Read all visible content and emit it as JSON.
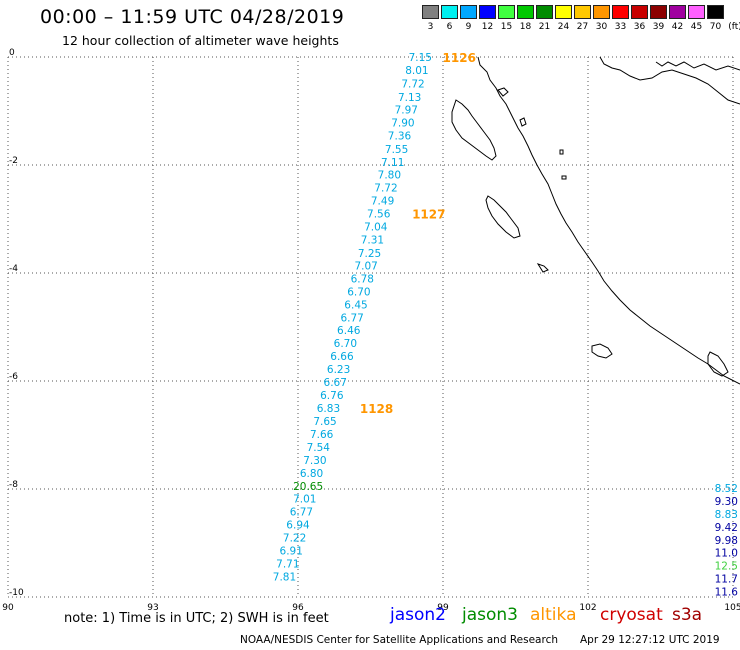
{
  "header": {
    "title": "00:00 – 11:59 UTC 04/28/2019",
    "subtitle": "12 hour collection of altimeter wave heights"
  },
  "legend": {
    "unit": "(ft)",
    "bins": [
      {
        "label": "3",
        "color": "#808080"
      },
      {
        "label": "6",
        "color": "#00f0f0"
      },
      {
        "label": "9",
        "color": "#00a8ff"
      },
      {
        "label": "12",
        "color": "#0000ff"
      },
      {
        "label": "15",
        "color": "#40ff40"
      },
      {
        "label": "18",
        "color": "#00c800"
      },
      {
        "label": "21",
        "color": "#008c00"
      },
      {
        "label": "24",
        "color": "#ffff00"
      },
      {
        "label": "27",
        "color": "#ffc800"
      },
      {
        "label": "30",
        "color": "#ff9600"
      },
      {
        "label": "33",
        "color": "#ff0000"
      },
      {
        "label": "36",
        "color": "#c80000"
      },
      {
        "label": "39",
        "color": "#8c0000"
      },
      {
        "label": "42",
        "color": "#a000a0"
      },
      {
        "label": "45",
        "color": "#ff60ff"
      },
      {
        "label": "70",
        "color": "#000000"
      }
    ]
  },
  "axes": {
    "lat_labels": [
      "0",
      "-2",
      "-4",
      "-6",
      "-8",
      "-10"
    ],
    "lon_labels": [
      "90",
      "93",
      "96",
      "99",
      "102",
      "105"
    ]
  },
  "colors": {
    "jason2": "#0000ff",
    "jason3": "#008c00",
    "altika": "#ff9600",
    "cryosat": "#d00000",
    "s3a": "#a00000",
    "wave_cyan": "#00a8e0",
    "coast": "#000000"
  },
  "track_main": [
    {
      "v": "7.15",
      "lon": 98.53,
      "lat": 0.0
    },
    {
      "v": "8.01",
      "lon": 98.46,
      "lat": -0.24
    },
    {
      "v": "7.72",
      "lon": 98.38,
      "lat": -0.49
    },
    {
      "v": "7.13",
      "lon": 98.31,
      "lat": -0.74
    },
    {
      "v": "7.97",
      "lon": 98.24,
      "lat": -0.97
    },
    {
      "v": "7.90",
      "lon": 98.17,
      "lat": -1.21
    },
    {
      "v": "7.36",
      "lon": 98.1,
      "lat": -1.45
    },
    {
      "v": "7.55",
      "lon": 98.04,
      "lat": -1.7
    },
    {
      "v": "7.11",
      "lon": 97.96,
      "lat": -1.94
    },
    {
      "v": "7.80",
      "lon": 97.89,
      "lat": -2.18
    },
    {
      "v": "7.72",
      "lon": 97.82,
      "lat": -2.42
    },
    {
      "v": "7.49",
      "lon": 97.75,
      "lat": -2.66
    },
    {
      "v": "7.56",
      "lon": 97.67,
      "lat": -2.9
    },
    {
      "v": "7.04",
      "lon": 97.61,
      "lat": -3.14
    },
    {
      "v": "7.31",
      "lon": 97.54,
      "lat": -3.38
    },
    {
      "v": "7.25",
      "lon": 97.48,
      "lat": -3.63
    },
    {
      "v": "7.07",
      "lon": 97.41,
      "lat": -3.86
    },
    {
      "v": "6.78",
      "lon": 97.33,
      "lat": -4.1
    },
    {
      "v": "6.70",
      "lon": 97.26,
      "lat": -4.34
    },
    {
      "v": "6.45",
      "lon": 97.2,
      "lat": -4.58
    },
    {
      "v": "6.77",
      "lon": 97.12,
      "lat": -4.82
    },
    {
      "v": "6.46",
      "lon": 97.05,
      "lat": -5.06
    },
    {
      "v": "6.70",
      "lon": 96.98,
      "lat": -5.3
    },
    {
      "v": "6.66",
      "lon": 96.91,
      "lat": -5.54
    },
    {
      "v": "6.23",
      "lon": 96.84,
      "lat": -5.78
    },
    {
      "v": "6.67",
      "lon": 96.77,
      "lat": -6.02
    },
    {
      "v": "6.76",
      "lon": 96.7,
      "lat": -6.26
    },
    {
      "v": "6.83",
      "lon": 96.63,
      "lat": -6.5
    },
    {
      "v": "7.65",
      "lon": 96.56,
      "lat": -6.74
    },
    {
      "v": "7.66",
      "lon": 96.49,
      "lat": -6.98
    },
    {
      "v": "7.54",
      "lon": 96.42,
      "lat": -7.22
    },
    {
      "v": "7.30",
      "lon": 96.35,
      "lat": -7.46
    },
    {
      "v": "6.80",
      "lon": 96.28,
      "lat": -7.7
    },
    {
      "v": "20.65",
      "lon": 96.21,
      "lat": -7.94,
      "c": "#008c00"
    },
    {
      "v": "7.01",
      "lon": 96.14,
      "lat": -8.18
    },
    {
      "v": "6.77",
      "lon": 96.07,
      "lat": -8.42
    },
    {
      "v": "6.94",
      "lon": 96.0,
      "lat": -8.66
    },
    {
      "v": "7.22",
      "lon": 95.93,
      "lat": -8.9
    },
    {
      "v": "6.91",
      "lon": 95.86,
      "lat": -9.14
    },
    {
      "v": "7.71",
      "lon": 95.79,
      "lat": -9.38
    },
    {
      "v": "7.81",
      "lon": 95.72,
      "lat": -9.62
    }
  ],
  "time_marks": [
    {
      "label": "1126",
      "lon": 98.99,
      "lat": 0.0
    },
    {
      "label": "1127",
      "lon": 98.36,
      "lat": -2.9
    },
    {
      "label": "1128",
      "lon": 97.28,
      "lat": -6.5
    }
  ],
  "track_right": [
    {
      "v": "8.52",
      "lat": -7.98,
      "c": "#00a8e0"
    },
    {
      "v": "9.30",
      "lat": -8.22,
      "c": "#0000a0"
    },
    {
      "v": "8.83",
      "lat": -8.46,
      "c": "#00a8e0"
    },
    {
      "v": "9.42",
      "lat": -8.7,
      "c": "#0000a0"
    },
    {
      "v": "9.98",
      "lat": -8.94,
      "c": "#0000a0"
    },
    {
      "v": "11.0",
      "lat": -9.18,
      "c": "#0000a0"
    },
    {
      "v": "12.5",
      "lat": -9.42,
      "c": "#40d040"
    },
    {
      "v": "11.7",
      "lat": -9.66,
      "c": "#0000a0"
    },
    {
      "v": "11.6",
      "lat": -9.9,
      "c": "#0000a0"
    }
  ],
  "footer": {
    "note": "note: 1) Time is in UTC; 2) SWH is in feet",
    "satellites": {
      "jason2": "jason2",
      "jason3": "jason3",
      "altika": "altika",
      "cryosat": "cryosat",
      "s3a": "s3a"
    },
    "credit": "NOAA/NESDIS Center for Satellite Applications and Research",
    "timestamp": "Apr 29 12:27:12 UTC 2019"
  }
}
